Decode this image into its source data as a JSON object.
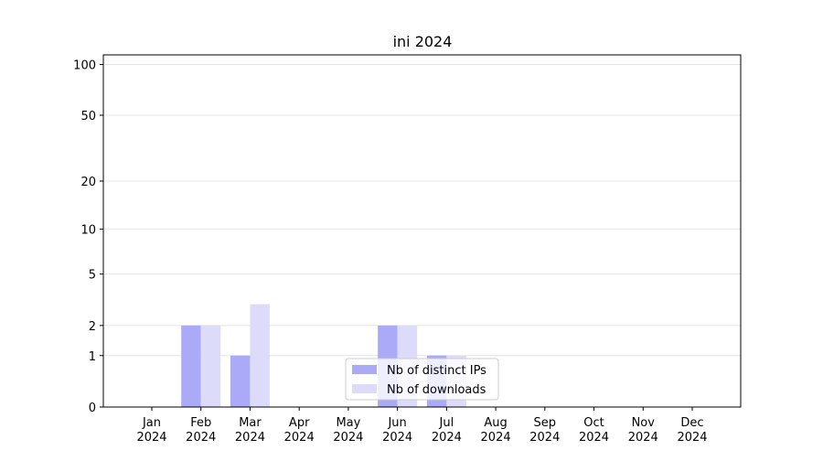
{
  "chart_data": {
    "type": "bar",
    "title": "ini 2024",
    "categories": [
      "Jan\n2024",
      "Feb\n2024",
      "Mar\n2024",
      "Apr\n2024",
      "May\n2024",
      "Jun\n2024",
      "Jul\n2024",
      "Aug\n2024",
      "Sep\n2024",
      "Oct\n2024",
      "Nov\n2024",
      "Dec\n2024"
    ],
    "series": [
      {
        "name": "Nb of distinct IPs",
        "color": "#aaaaf8",
        "values": [
          0,
          2,
          1,
          0,
          0,
          2,
          1,
          0,
          0,
          0,
          0,
          0
        ]
      },
      {
        "name": "Nb of downloads",
        "color": "#dcdcfa",
        "values": [
          0,
          2,
          3,
          0,
          0,
          2,
          1,
          0,
          0,
          0,
          0,
          0
        ]
      }
    ],
    "yscale": "log1p",
    "ylim": [
      0,
      114
    ],
    "yticks": [
      0,
      1,
      2,
      5,
      10,
      20,
      50,
      100
    ],
    "grid": true,
    "legend": "lower center"
  }
}
